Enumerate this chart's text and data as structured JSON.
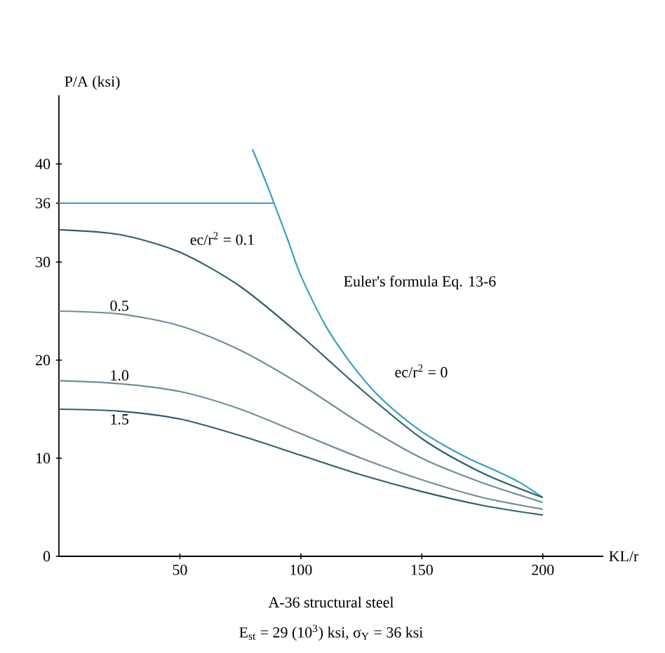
{
  "chart_data": {
    "type": "line",
    "xlabel": "KL/r",
    "ylabel": "P/A (ksi)",
    "xlim": [
      0,
      225
    ],
    "ylim": [
      0,
      47
    ],
    "xticks": [
      50,
      100,
      150,
      200
    ],
    "yticks": [
      0,
      10,
      20,
      30,
      36,
      40
    ],
    "grid": false,
    "legend": false,
    "marker": "none",
    "line_style": "solid",
    "annotations": [
      {
        "text": "Euler's formula Eq. 13-6",
        "x": 110,
        "y": 23.6
      },
      "A-36 structural steel",
      "E$_{st}$ = 29 (10$^{3}$) ksi, σ$_{Y}$ = 36 ksi"
    ],
    "series": [
      {
        "color": "#3a9ec0",
        "x": [
          0,
          89
        ],
        "values": [
          36,
          36
        ]
      },
      {
        "name": "ec/r$^{2}$ = 0",
        "color": "#3a9ec0",
        "x": [
          80,
          85,
          90,
          95,
          100,
          110,
          120,
          130,
          140,
          150,
          160,
          170,
          180,
          190,
          200
        ],
        "values": [
          41.5,
          38.5,
          35.3,
          32,
          28.6,
          23.6,
          19.9,
          16.9,
          14.6,
          12.7,
          11.2,
          9.9,
          8.8,
          7.6,
          6
        ]
      },
      {
        "name": "ec/r$^{2}$ = 0.1",
        "color": "#2f5f70",
        "x": [
          0,
          25,
          50,
          75,
          100,
          125,
          150,
          175,
          200
        ],
        "values": [
          33.3,
          32.8,
          31,
          27.5,
          22.5,
          17,
          12,
          8.5,
          6
        ]
      },
      {
        "name": "0.5",
        "color": "#6f8e99",
        "x": [
          0,
          25,
          50,
          75,
          100,
          125,
          150,
          175,
          200
        ],
        "values": [
          25,
          24.7,
          23.5,
          21,
          17.5,
          13.5,
          10,
          7.5,
          5.5
        ]
      },
      {
        "name": "1.0",
        "color": "#6f8e99",
        "x": [
          0,
          25,
          50,
          75,
          100,
          125,
          150,
          175,
          200
        ],
        "values": [
          17.9,
          17.6,
          16.8,
          15,
          12.5,
          10,
          7.8,
          6,
          4.8
        ]
      },
      {
        "name": "1.5",
        "color": "#2f5f70",
        "x": [
          0,
          25,
          50,
          75,
          100,
          125,
          150,
          175,
          200
        ],
        "values": [
          15,
          14.8,
          14,
          12.3,
          10.3,
          8.3,
          6.6,
          5.2,
          4.2
        ]
      }
    ]
  }
}
